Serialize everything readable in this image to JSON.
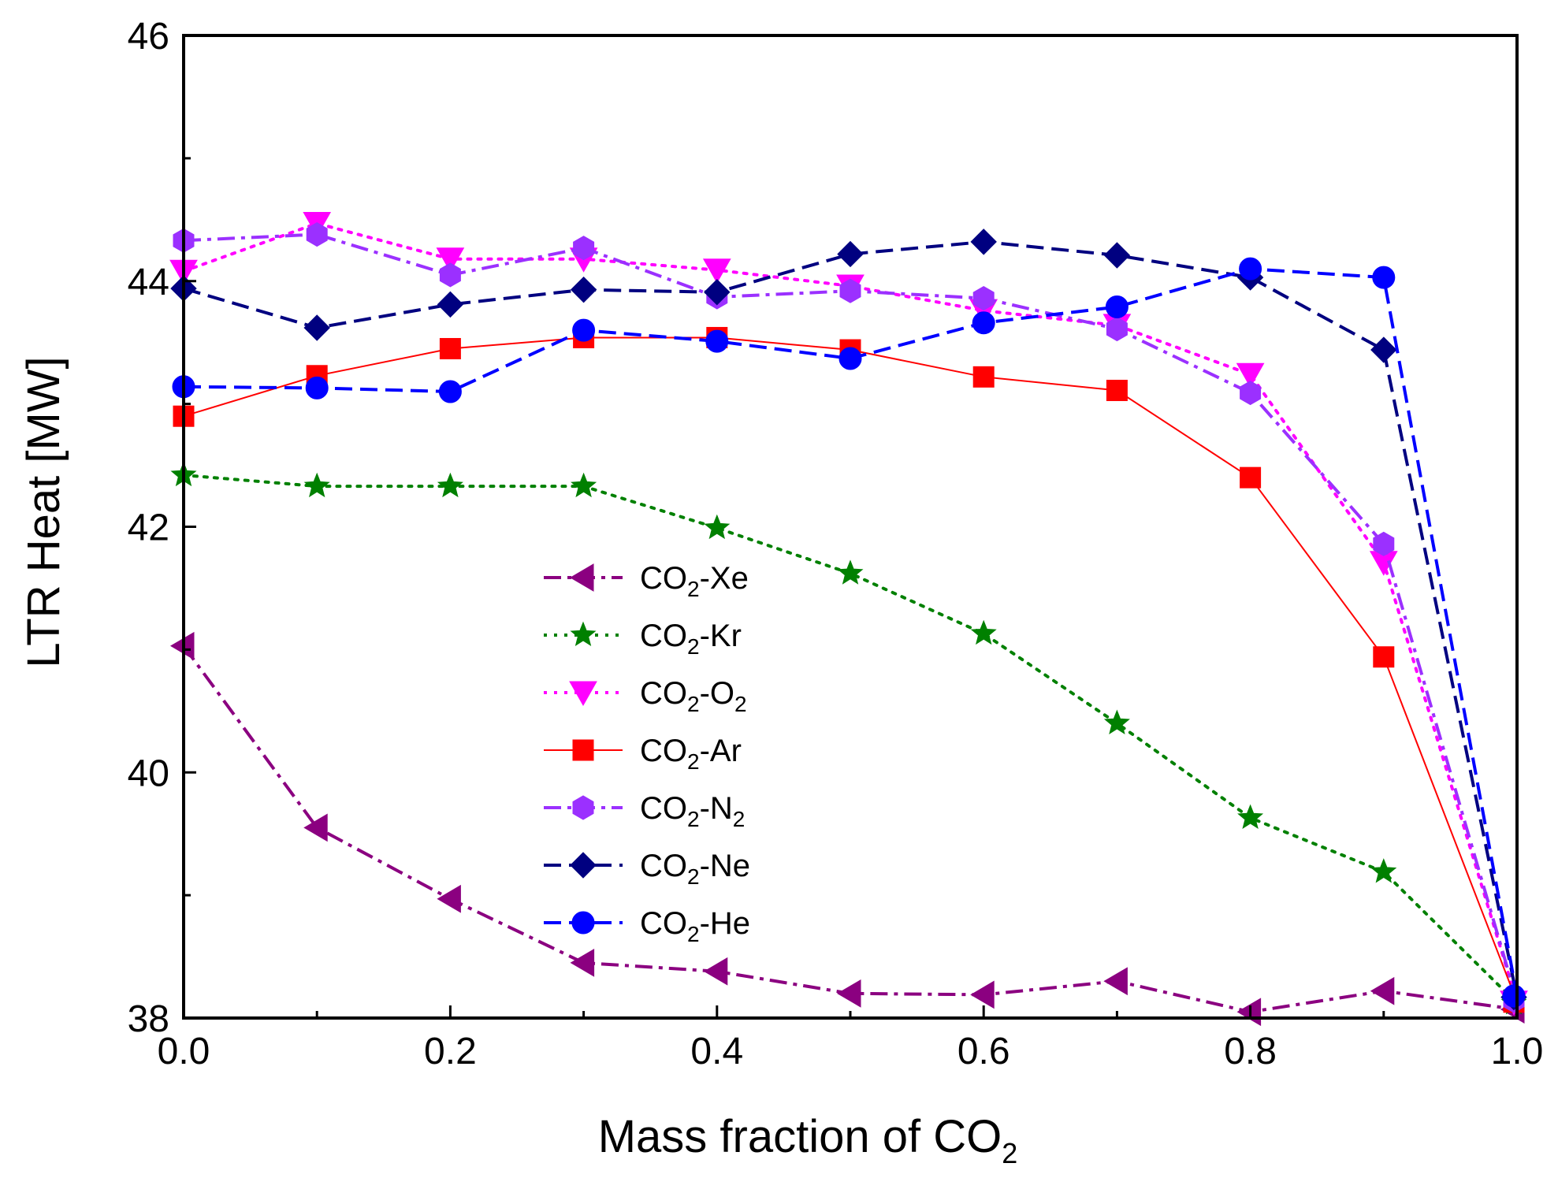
{
  "chart_data": {
    "type": "line",
    "xlabel": "Mass fraction of CO",
    "xlabel_sub": "2",
    "ylabel": "LTR Heat [MW]",
    "xlim": [
      0,
      1
    ],
    "ylim": [
      38,
      46
    ],
    "xticks": [
      0,
      0.2,
      0.4,
      0.6,
      0.8,
      1.0
    ],
    "xtick_labels": [
      "0.0",
      "0.2",
      "0.4",
      "0.6",
      "0.8",
      "1.0"
    ],
    "yticks": [
      38,
      40,
      42,
      44,
      46
    ],
    "ytick_labels": [
      "38",
      "40",
      "42",
      "44",
      "46"
    ],
    "grid": false,
    "legend_position": "center-left",
    "x": [
      0.0,
      0.1,
      0.2,
      0.3,
      0.4,
      0.5,
      0.6,
      0.7,
      0.8,
      0.9,
      1.0
    ],
    "series": [
      {
        "name": "CO2-Xe",
        "legend": [
          "CO",
          "2",
          "-Xe"
        ],
        "color": "#8B0080",
        "marker": "triangle-left",
        "dash": "dashdot",
        "values": [
          41.03,
          39.55,
          38.97,
          38.45,
          38.38,
          38.2,
          38.19,
          38.3,
          38.05,
          38.22,
          38.07
        ]
      },
      {
        "name": "CO2-Kr",
        "legend": [
          "CO",
          "2",
          "-Kr"
        ],
        "color": "#008000",
        "marker": "star",
        "dash": "dot",
        "values": [
          42.42,
          42.33,
          42.33,
          42.33,
          41.99,
          41.62,
          41.13,
          40.4,
          39.63,
          39.19,
          38.12
        ]
      },
      {
        "name": "CO2-O2",
        "legend": [
          "CO",
          "2",
          "-O",
          "2"
        ],
        "color": "#FF00FF",
        "marker": "triangle-down",
        "dash": "dot",
        "values": [
          44.08,
          44.47,
          44.18,
          44.18,
          44.09,
          43.96,
          43.76,
          43.64,
          43.24,
          41.71,
          38.13
        ]
      },
      {
        "name": "CO2-Ar",
        "legend": [
          "CO",
          "2",
          "-Ar"
        ],
        "color": "#FF0000",
        "marker": "square",
        "dash": "solid",
        "values": [
          42.9,
          43.23,
          43.45,
          43.54,
          43.54,
          43.44,
          43.22,
          43.11,
          42.4,
          40.94,
          38.13
        ]
      },
      {
        "name": "CO2-N2",
        "legend": [
          "CO",
          "2",
          "-N",
          "2"
        ],
        "color": "#9B30FF",
        "marker": "hexagon",
        "dash": "dashdot",
        "values": [
          44.33,
          44.38,
          44.05,
          44.27,
          43.87,
          43.92,
          43.86,
          43.61,
          43.09,
          41.86,
          38.14
        ]
      },
      {
        "name": "CO2-Ne",
        "legend": [
          "CO",
          "2",
          "-Ne"
        ],
        "color": "#000080",
        "marker": "diamond",
        "dash": "dash",
        "values": [
          43.94,
          43.62,
          43.81,
          43.93,
          43.91,
          44.22,
          44.32,
          44.21,
          44.03,
          43.44,
          38.17
        ]
      },
      {
        "name": "CO2-He",
        "legend": [
          "CO",
          "2",
          "-He"
        ],
        "color": "#0000FF",
        "marker": "circle",
        "dash": "dash",
        "values": [
          43.14,
          43.13,
          43.1,
          43.6,
          43.51,
          43.37,
          43.66,
          43.79,
          44.1,
          44.03,
          38.18
        ]
      }
    ]
  }
}
